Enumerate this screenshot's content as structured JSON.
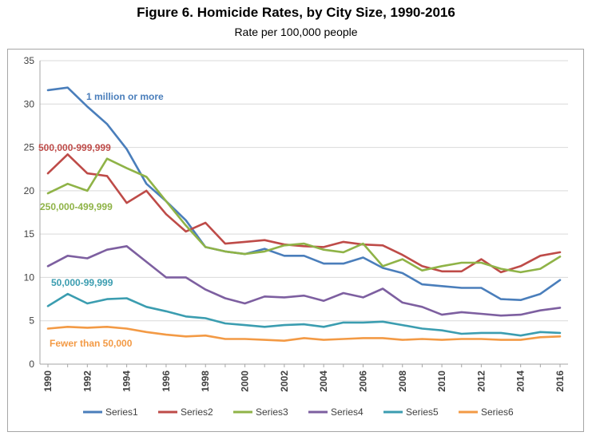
{
  "header": {
    "title": "Figure 6. Homicide Rates, by City Size, 1990-2016",
    "subtitle": "Rate per 100,000 people"
  },
  "chart_data": {
    "type": "line",
    "title": "Figure 6. Homicide Rates, by City Size, 1990-2016",
    "subtitle": "Rate per 100,000 people",
    "x": [
      1990,
      1991,
      1992,
      1993,
      1994,
      1995,
      1996,
      1997,
      1998,
      1999,
      2000,
      2001,
      2002,
      2003,
      2004,
      2005,
      2006,
      2007,
      2008,
      2009,
      2010,
      2011,
      2012,
      2013,
      2014,
      2015,
      2016
    ],
    "x_tick_labels": [
      "1990",
      "1992",
      "1994",
      "1996",
      "1998",
      "2000",
      "2002",
      "2004",
      "2006",
      "2008",
      "2010",
      "2012",
      "2014",
      "2016"
    ],
    "ylim": [
      0,
      35
    ],
    "y_ticks": [
      0,
      5,
      10,
      15,
      20,
      25,
      30,
      35
    ],
    "grid": true,
    "legend_position": "bottom",
    "series": [
      {
        "name": "Series1",
        "label": "1 million or more",
        "color": "#4a7ebb",
        "values": [
          31.6,
          31.9,
          29.7,
          27.7,
          24.8,
          20.8,
          18.8,
          16.6,
          13.5,
          13.0,
          12.7,
          13.3,
          12.5,
          12.5,
          11.6,
          11.6,
          12.3,
          11.1,
          10.5,
          9.2,
          9.0,
          8.8,
          8.8,
          7.5,
          7.4,
          8.1,
          9.7
        ]
      },
      {
        "name": "Series2",
        "label": "500,000-999,999",
        "color": "#be4b48",
        "values": [
          22.0,
          24.2,
          22.0,
          21.7,
          18.6,
          20.0,
          17.3,
          15.3,
          16.3,
          13.9,
          14.1,
          14.3,
          13.8,
          13.6,
          13.5,
          14.1,
          13.8,
          13.7,
          12.6,
          11.3,
          10.7,
          10.7,
          12.1,
          10.6,
          11.3,
          12.5,
          12.9
        ]
      },
      {
        "name": "Series3",
        "label": "250,000-499,999",
        "color": "#8fb347",
        "values": [
          19.7,
          20.8,
          20.0,
          23.7,
          22.6,
          21.6,
          18.8,
          16.0,
          13.5,
          13.0,
          12.7,
          13.0,
          13.7,
          13.9,
          13.2,
          12.9,
          13.9,
          11.3,
          12.1,
          10.8,
          11.3,
          11.7,
          11.7,
          11.0,
          10.6,
          11.0,
          12.4
        ]
      },
      {
        "name": "Series4",
        "label": "",
        "color": "#7d5fa0",
        "values": [
          11.3,
          12.5,
          12.2,
          13.2,
          13.6,
          11.8,
          10.0,
          10.0,
          8.6,
          7.6,
          7.0,
          7.8,
          7.7,
          7.9,
          7.3,
          8.2,
          7.7,
          8.7,
          7.1,
          6.6,
          5.7,
          6.0,
          5.8,
          5.6,
          5.7,
          6.2,
          6.5
        ]
      },
      {
        "name": "Series5",
        "label": "50,000-99,999",
        "color": "#3b9db0",
        "values": [
          6.7,
          8.1,
          7.0,
          7.5,
          7.6,
          6.6,
          6.1,
          5.5,
          5.3,
          4.7,
          4.5,
          4.3,
          4.5,
          4.6,
          4.3,
          4.8,
          4.8,
          4.9,
          4.5,
          4.1,
          3.9,
          3.5,
          3.6,
          3.6,
          3.3,
          3.7,
          3.6
        ]
      },
      {
        "name": "Series6",
        "label": "Fewer than 50,000",
        "color": "#f39a45",
        "values": [
          4.1,
          4.3,
          4.2,
          4.3,
          4.1,
          3.7,
          3.4,
          3.2,
          3.3,
          2.9,
          2.9,
          2.8,
          2.7,
          3.0,
          2.8,
          2.9,
          3.0,
          3.0,
          2.8,
          2.9,
          2.8,
          2.9,
          2.9,
          2.8,
          2.8,
          3.1,
          3.2
        ]
      }
    ]
  }
}
